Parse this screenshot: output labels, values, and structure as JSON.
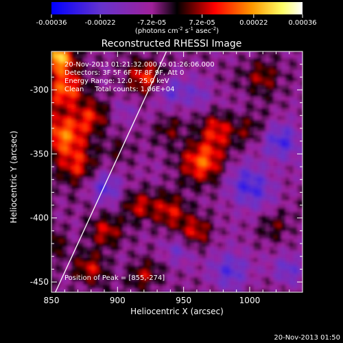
{
  "chart_data": {
    "type": "heatmap",
    "title": "Reconstructed RHESSI Image",
    "xlabel": "Heliocentric X (arcsec)",
    "ylabel": "Heliocentric Y (arcsec)",
    "xlim": [
      850,
      1040
    ],
    "ylim": [
      -458,
      -270
    ],
    "x_ticks": [
      "850",
      "900",
      "950",
      "1000"
    ],
    "y_ticks": [
      "-300",
      "-350",
      "-400",
      "-450"
    ],
    "colorbar": {
      "range": [
        -0.00036,
        0.00036
      ],
      "tick_labels": [
        "-0.00036",
        "-0.00022",
        "-7.2e-05",
        "7.2e-05",
        "0.00022",
        "0.00036"
      ],
      "unit_label": "(photons cm-2 s-1 asec-2)",
      "colormap": [
        "#0000ff",
        "#6633cc",
        "#a0209a",
        "#000000",
        "#ff0000",
        "#ff9900",
        "#ffff66",
        "#ffffff"
      ]
    },
    "annotations": [
      "20-Nov-2013 01:21:32.000 to 01:26:06.000",
      "Detectors: 3F 5F 6F 7F 8F 9F, Att 0",
      "Energy Range: 12.0 - 25.0 keV",
      "Clean     Total counts: 1.06E+04"
    ],
    "peak_label": "Position of Peak = [855,-274]",
    "peak": [
      855,
      -274
    ],
    "limb_line": [
      [
        853,
        -458
      ],
      [
        937,
        -270
      ]
    ]
  },
  "footer_timestamp": "20-Nov-2013 01:50"
}
